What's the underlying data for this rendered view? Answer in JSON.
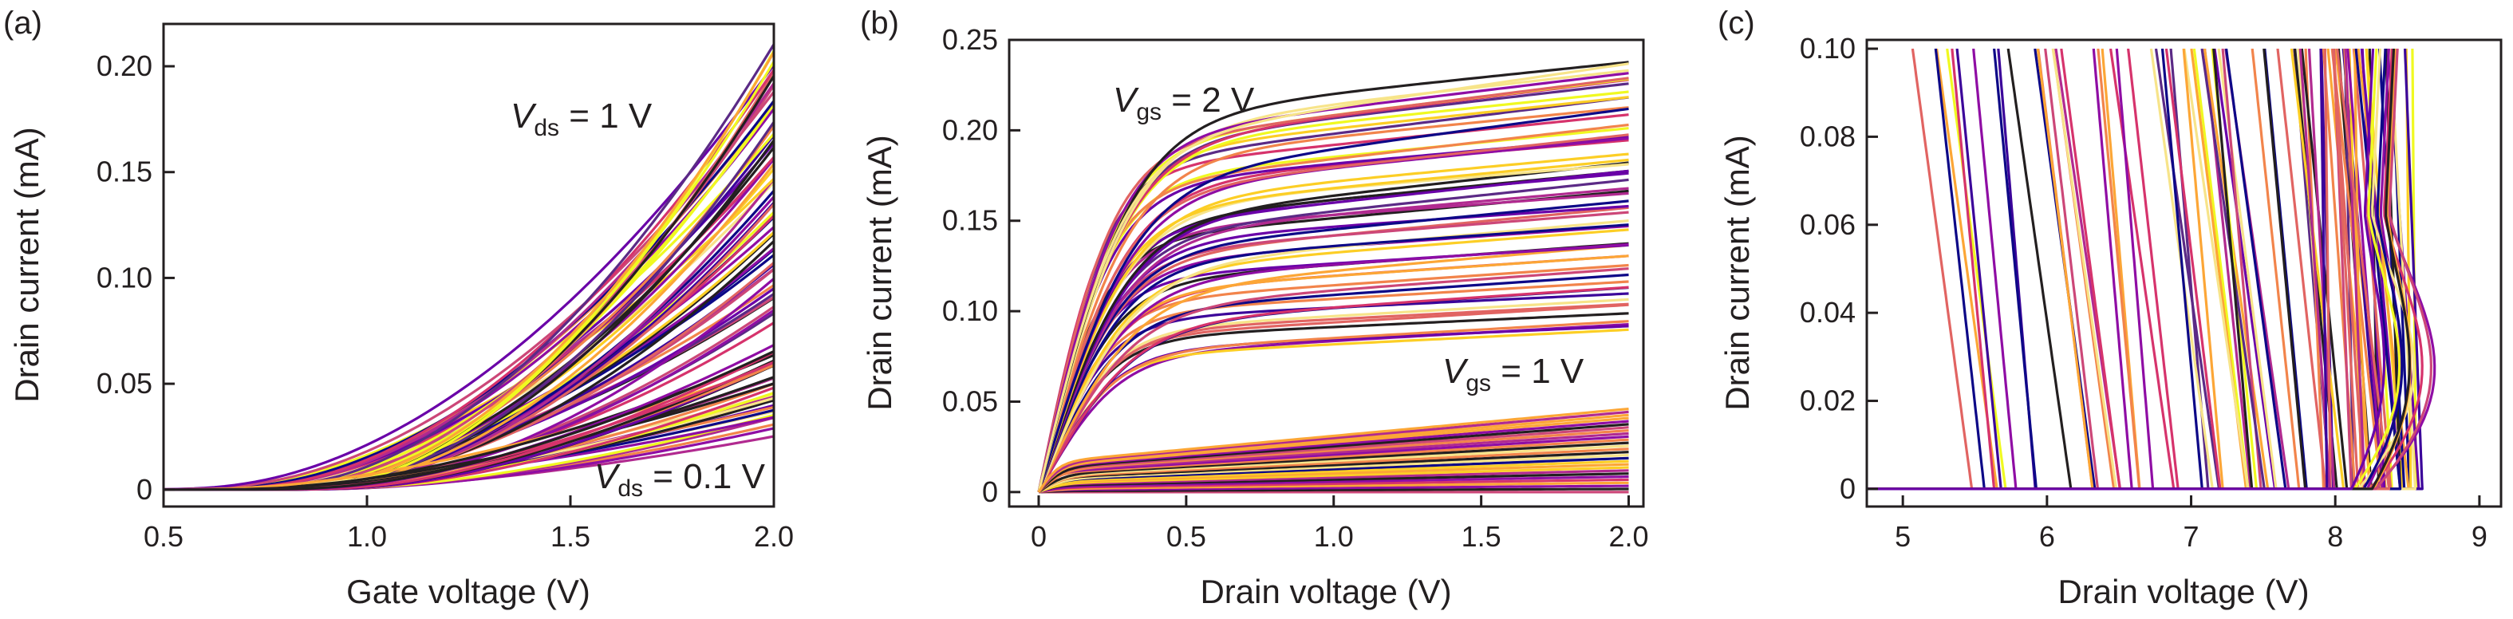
{
  "colors": {
    "palette": [
      "#0d0887",
      "#3b049a",
      "#6a00a8",
      "#8f0da4",
      "#b12a90",
      "#cc4778",
      "#e16462",
      "#f2844b",
      "#fca636",
      "#fcce25",
      "#f0f921",
      "#f7e48a",
      "#231f20",
      "#5b2a86",
      "#d6336c"
    ],
    "axis": "#231f20"
  },
  "chart_data": [
    {
      "type": "line",
      "panel_label": "(a)",
      "xlabel": "Gate voltage (V)",
      "ylabel": "Drain current (mA)",
      "xlim": [
        0.5,
        2.0
      ],
      "ylim": [
        -0.008,
        0.22
      ],
      "xticks": [
        0.5,
        1.0,
        1.5,
        2.0
      ],
      "xtick_labels": [
        "0.5",
        "1.0",
        "1.5",
        "2.0"
      ],
      "yticks": [
        0,
        0.05,
        0.1,
        0.15,
        0.2
      ],
      "ytick_labels": [
        "0",
        "0.05",
        "0.10",
        "0.15",
        "0.20"
      ],
      "annotations": [
        {
          "var": "V",
          "sub": "ds",
          "text": " = 1 V"
        },
        {
          "var": "V",
          "sub": "ds",
          "text": " = 0.1 V"
        }
      ],
      "series_groups": [
        {
          "name": "Vds = 1 V",
          "count": 60,
          "vth": [
            0.55,
            0.85
          ],
          "i_end": [
            0.08,
            0.21
          ]
        },
        {
          "name": "Vds = 0.1 V",
          "count": 30,
          "vth": [
            0.6,
            0.95
          ],
          "i_end": [
            0.028,
            0.068
          ]
        }
      ]
    },
    {
      "type": "line",
      "panel_label": "(b)",
      "xlabel": "Drain voltage (V)",
      "ylabel": "Drain current (mA)",
      "xlim": [
        -0.1,
        2.05
      ],
      "ylim": [
        -0.008,
        0.25
      ],
      "xticks": [
        0,
        0.5,
        1.0,
        1.5,
        2.0
      ],
      "xtick_labels": [
        "0",
        "0.5",
        "1.0",
        "1.5",
        "2.0"
      ],
      "yticks": [
        0,
        0.05,
        0.1,
        0.15,
        0.2,
        0.25
      ],
      "ytick_labels": [
        "0",
        "0.05",
        "0.10",
        "0.15",
        "0.20",
        "0.25"
      ],
      "annotations": [
        {
          "var": "V",
          "sub": "gs",
          "text": " = 2 V"
        },
        {
          "var": "V",
          "sub": "gs",
          "text": " = 1 V"
        }
      ],
      "series_groups": [
        {
          "name": "Vgs = 2 V",
          "count": 60,
          "i_sat": [
            0.09,
            0.24
          ]
        },
        {
          "name": "Vgs = 1 V",
          "count": 28,
          "i_end": [
            0.0,
            0.046
          ]
        }
      ]
    },
    {
      "type": "line",
      "panel_label": "(c)",
      "xlabel": "Drain voltage (V)",
      "ylabel": "Drain current (mA)",
      "xlim": [
        4.75,
        9.15
      ],
      "ylim": [
        -0.004,
        0.102
      ],
      "xticks": [
        5,
        6,
        7,
        8,
        9
      ],
      "xtick_labels": [
        "5",
        "6",
        "7",
        "8",
        "9"
      ],
      "yticks": [
        0,
        0.02,
        0.04,
        0.06,
        0.08,
        0.1
      ],
      "ytick_labels": [
        "0",
        "0.02",
        "0.04",
        "0.06",
        "0.08",
        "0.10"
      ],
      "series_groups": [
        {
          "name": "breakdown curves",
          "count": 90,
          "v_breakdown": [
            5.3,
            8.7
          ]
        }
      ]
    }
  ]
}
